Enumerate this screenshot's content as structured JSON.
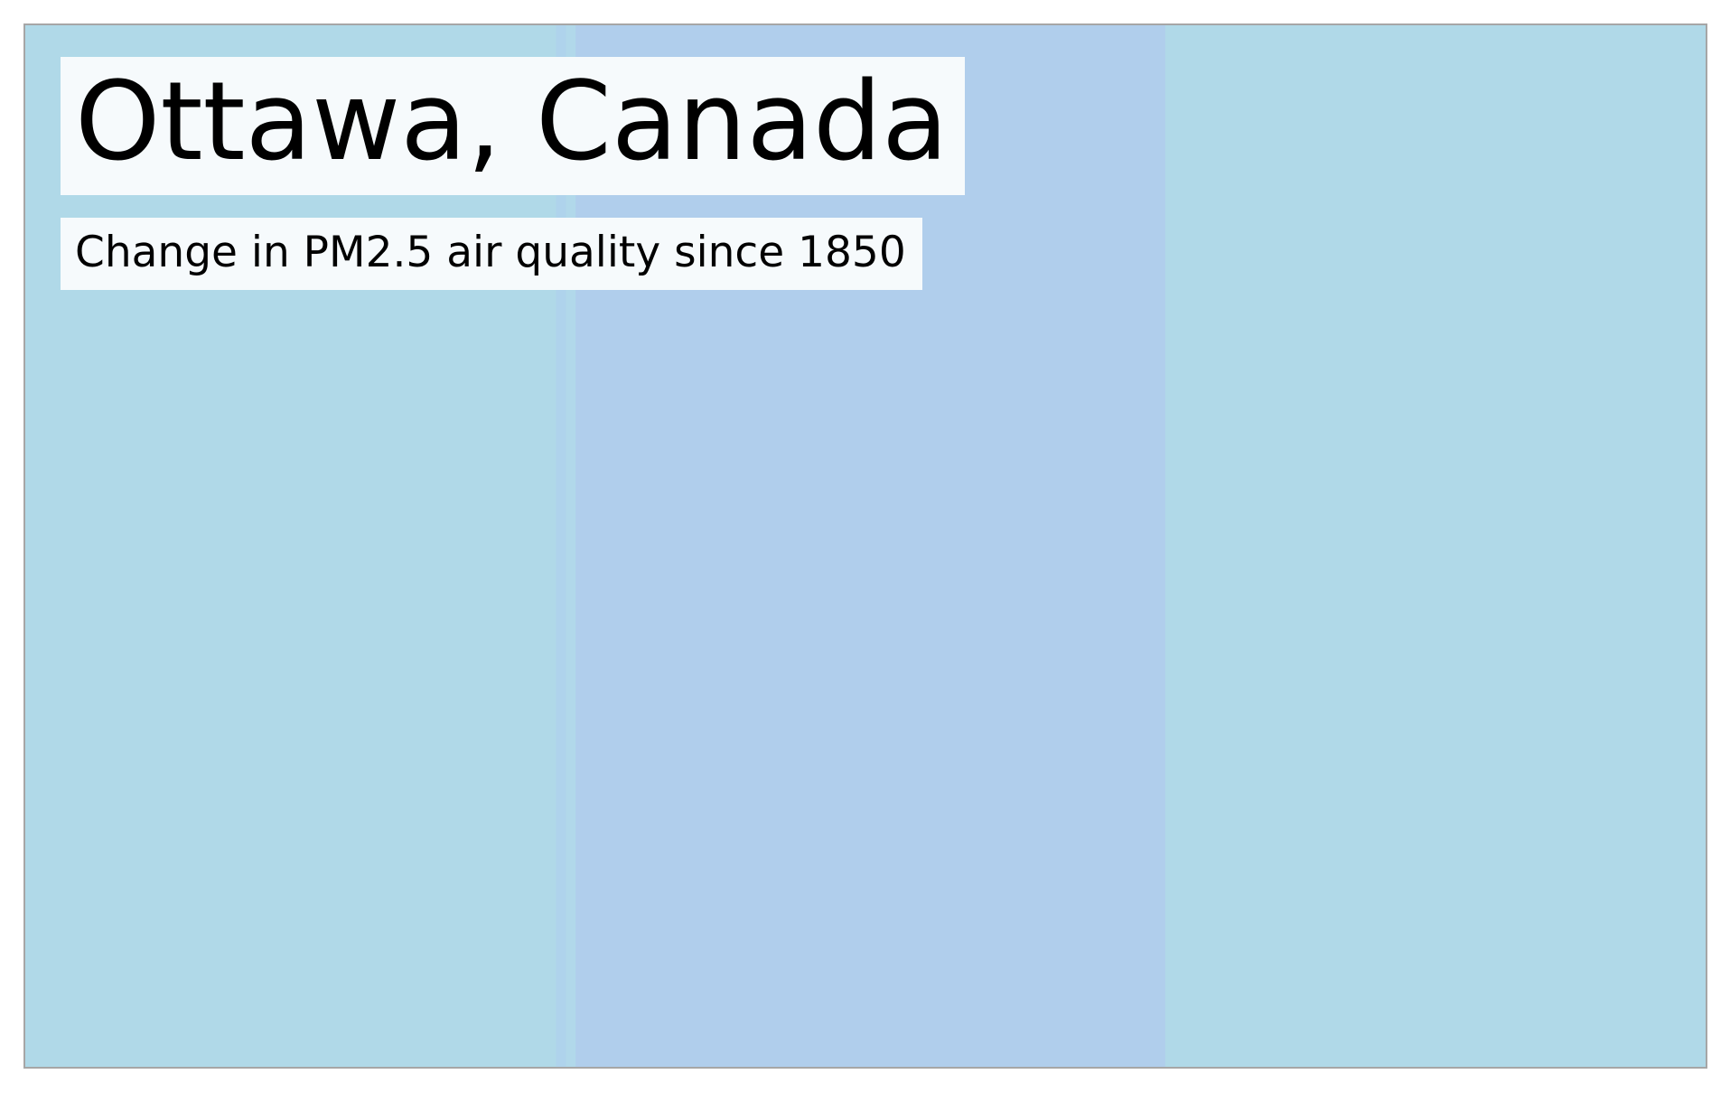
{
  "title": "Ottawa, Canada",
  "subtitle": "Change in PM2.5 air quality since 1850",
  "chart_data": {
    "type": "heatmap",
    "title": "Ottawa, Canada",
    "subtitle": "Change in PM2.5 air quality since 1850",
    "xlabel": "",
    "ylabel": "",
    "grid": false,
    "legend": "none",
    "x_start": 1850,
    "x_end": 2021,
    "stripe_color_bands": [
      {
        "from": 1850,
        "to": 1904,
        "color": "#b0d9e8"
      },
      {
        "from": 1904,
        "to": 1905,
        "color": "#afd3ec"
      },
      {
        "from": 1905,
        "to": 1906,
        "color": "#b1d8ea"
      },
      {
        "from": 1906,
        "to": 1966,
        "color": "#b0ceec"
      },
      {
        "from": 1966,
        "to": 2021,
        "color": "#b0d9e8"
      }
    ],
    "frame_color": "#a6a6a6",
    "label_background": "#f6fafc"
  }
}
